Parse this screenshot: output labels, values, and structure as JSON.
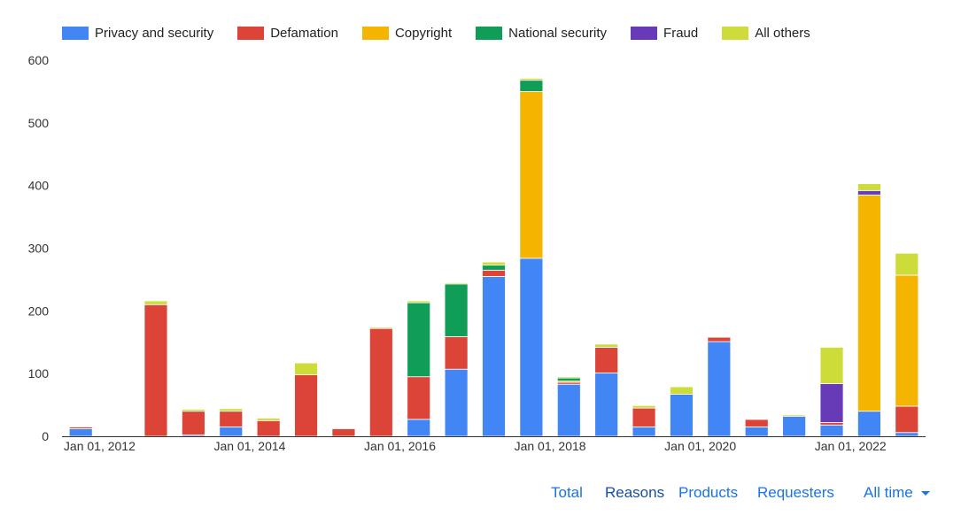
{
  "chart_data": {
    "type": "bar",
    "stacked": true,
    "x": [
      "2011-07",
      "2012-01",
      "2012-07",
      "2013-01",
      "2013-07",
      "2014-01",
      "2014-07",
      "2015-01",
      "2015-07",
      "2016-01",
      "2016-07",
      "2017-01",
      "2017-07",
      "2018-01",
      "2018-07",
      "2019-01",
      "2019-07",
      "2020-01",
      "2020-07",
      "2021-01",
      "2021-07",
      "2022-01",
      "2022-07"
    ],
    "x_tick_labels": [
      "Jan 01, 2012",
      "Jan 01, 2014",
      "Jan 01, 2016",
      "Jan 01, 2018",
      "Jan 01, 2020",
      "Jan 01, 2022"
    ],
    "y_ticks": [
      0,
      100,
      200,
      300,
      400,
      500,
      600
    ],
    "ylim": [
      0,
      600
    ],
    "legend_position": "top",
    "grid": false,
    "series": [
      {
        "name": "Privacy and security",
        "color": "#4285f4",
        "values": [
          12,
          0,
          0,
          2,
          15,
          0,
          0,
          0,
          0,
          27,
          107,
          255,
          284,
          83,
          101,
          15,
          67,
          151,
          15,
          32,
          18,
          40,
          6
        ]
      },
      {
        "name": "Defamation",
        "color": "#db4437",
        "values": [
          3,
          1,
          210,
          38,
          25,
          25,
          98,
          12,
          172,
          68,
          52,
          10,
          0,
          3,
          41,
          30,
          0,
          7,
          12,
          0,
          4,
          0,
          42
        ]
      },
      {
        "name": "Copyright",
        "color": "#f4b400",
        "values": [
          0,
          0,
          0,
          0,
          0,
          0,
          0,
          0,
          0,
          0,
          0,
          0,
          266,
          2,
          0,
          0,
          0,
          0,
          0,
          0,
          0,
          345,
          209
        ]
      },
      {
        "name": "National security",
        "color": "#0f9d58",
        "values": [
          0,
          0,
          0,
          0,
          0,
          0,
          0,
          0,
          0,
          118,
          84,
          8,
          18,
          5,
          0,
          0,
          0,
          0,
          0,
          0,
          0,
          0,
          0
        ]
      },
      {
        "name": "Fraud",
        "color": "#673ab7",
        "values": [
          0,
          0,
          0,
          0,
          0,
          0,
          0,
          0,
          0,
          0,
          0,
          0,
          0,
          0,
          0,
          0,
          0,
          0,
          0,
          0,
          62,
          7,
          0
        ]
      },
      {
        "name": "All others",
        "color": "#cddc39",
        "values": [
          1,
          1,
          6,
          3,
          4,
          4,
          19,
          0,
          2,
          3,
          2,
          5,
          3,
          2,
          5,
          4,
          12,
          1,
          1,
          2,
          58,
          11,
          35
        ]
      }
    ]
  },
  "nav": {
    "total": "Total",
    "reasons": "Reasons",
    "products": "Products",
    "requesters": "Requesters",
    "time_filter": "All time"
  },
  "colors": {
    "link": "#1a73e8",
    "link_active": "#174ea6",
    "axis": "#333333",
    "text": "#222222"
  }
}
